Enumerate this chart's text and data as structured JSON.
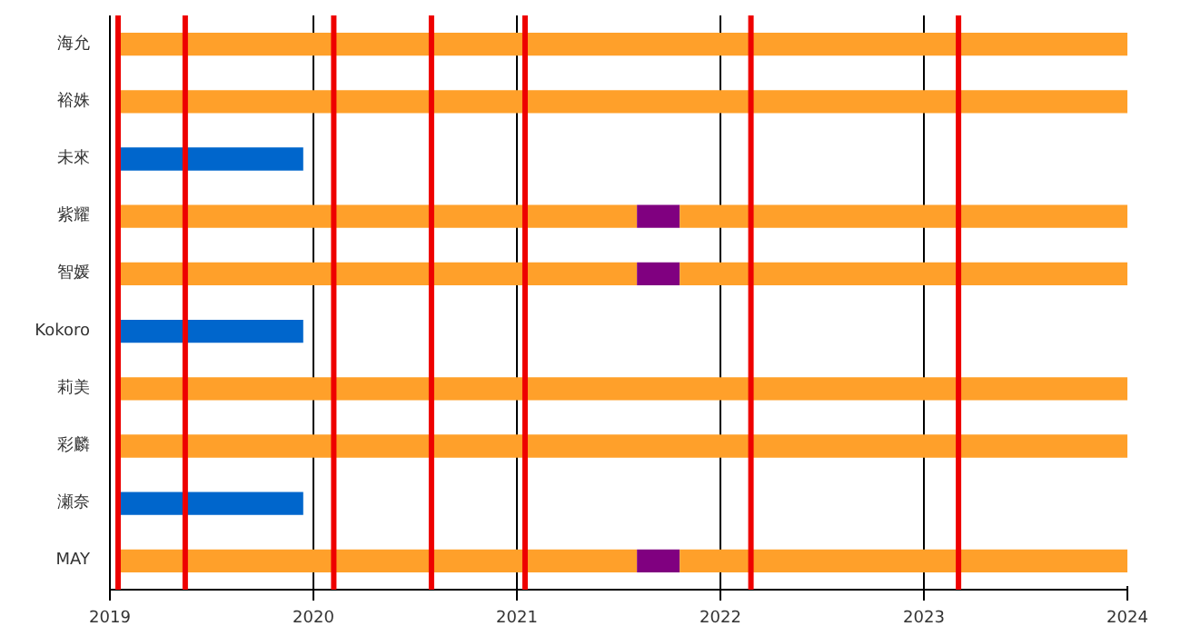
{
  "chart_data": {
    "type": "bar",
    "orientation": "horizontal",
    "categories": [
      "海允",
      "裕姝",
      "未來",
      "紫耀",
      "智媛",
      "Kokoro",
      "莉美",
      "彩麟",
      "瀬奈",
      "MAY"
    ],
    "series": [
      {
        "colors": [
          "#ffa02a",
          "#ffa02a",
          "#0066cc",
          "#ffa02a",
          "#ffa02a",
          "#0066cc",
          "#ffa02a",
          "#ffa02a",
          "#0066cc",
          "#ffa02a"
        ],
        "base": [
          2019.03,
          2019.03,
          2019.03,
          2019.03,
          2019.03,
          2019.03,
          2019.03,
          2019.03,
          2019.03,
          2019.03
        ],
        "values": [
          4.97,
          4.97,
          0.92,
          2.56,
          2.56,
          0.92,
          4.97,
          4.97,
          0.92,
          2.56
        ]
      },
      {
        "color": "#800080",
        "base": [
          null,
          null,
          null,
          2021.59,
          2021.59,
          null,
          null,
          null,
          null,
          2021.59
        ],
        "values": [
          null,
          null,
          null,
          0.21,
          0.21,
          null,
          null,
          null,
          null,
          0.21
        ]
      },
      {
        "color": "#ffa02a",
        "base": [
          null,
          null,
          null,
          2021.8,
          2021.8,
          null,
          null,
          null,
          null,
          2021.8
        ],
        "values": [
          null,
          null,
          null,
          2.2,
          2.2,
          null,
          null,
          null,
          null,
          2.2
        ]
      }
    ],
    "xlim": [
      2019,
      2024
    ],
    "xticks": [
      2019,
      2020,
      2021,
      2022,
      2023,
      2024
    ],
    "grid": "x",
    "ref_lines": [
      {
        "axis": "x",
        "value": 2019.04,
        "color": "#ee0000"
      },
      {
        "axis": "x",
        "value": 2019.37,
        "color": "#ee0000"
      },
      {
        "axis": "x",
        "value": 2020.1,
        "color": "#ee0000"
      },
      {
        "axis": "x",
        "value": 2020.58,
        "color": "#ee0000"
      },
      {
        "axis": "x",
        "value": 2021.04,
        "color": "#ee0000"
      },
      {
        "axis": "x",
        "value": 2022.15,
        "color": "#ee0000"
      },
      {
        "axis": "x",
        "value": 2023.17,
        "color": "#ee0000"
      }
    ]
  }
}
